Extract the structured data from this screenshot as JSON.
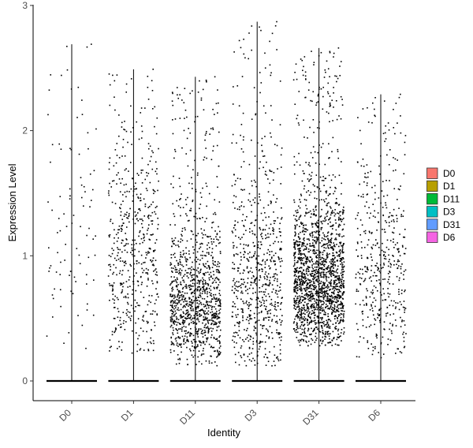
{
  "chart_data": {
    "type": "scatter",
    "subtype": "violin-jitter",
    "xlabel": "Identity",
    "ylabel": "Expression Level",
    "ylim": [
      0,
      3
    ],
    "yticks": [
      0,
      1,
      2,
      3
    ],
    "grid": false,
    "legend_position": "right",
    "categories": [
      "D0",
      "D1",
      "D11",
      "D3",
      "D31",
      "D6"
    ],
    "series": [
      {
        "name": "D0",
        "color": "#F8766D",
        "max": 2.69,
        "n_expressed": 90,
        "center": 0.95,
        "spread": 0.65,
        "floor": 0.25
      },
      {
        "name": "D1",
        "color": "#B79F00",
        "max": 2.49,
        "n_expressed": 520,
        "center": 0.85,
        "spread": 0.55,
        "floor": 0.22
      },
      {
        "name": "D11",
        "color": "#00BA38",
        "max": 2.43,
        "n_expressed": 1100,
        "center": 0.55,
        "spread": 0.35,
        "floor": 0.12
      },
      {
        "name": "D3",
        "color": "#00BFC4",
        "max": 2.87,
        "n_expressed": 700,
        "center": 0.65,
        "spread": 0.5,
        "floor": 0.12
      },
      {
        "name": "D31",
        "color": "#619CFF",
        "max": 2.66,
        "n_expressed": 1800,
        "center": 0.7,
        "spread": 0.35,
        "floor": 0.28
      },
      {
        "name": "D6",
        "color": "#F564E3",
        "max": 2.29,
        "n_expressed": 450,
        "center": 0.75,
        "spread": 0.5,
        "floor": 0.17
      }
    ]
  }
}
